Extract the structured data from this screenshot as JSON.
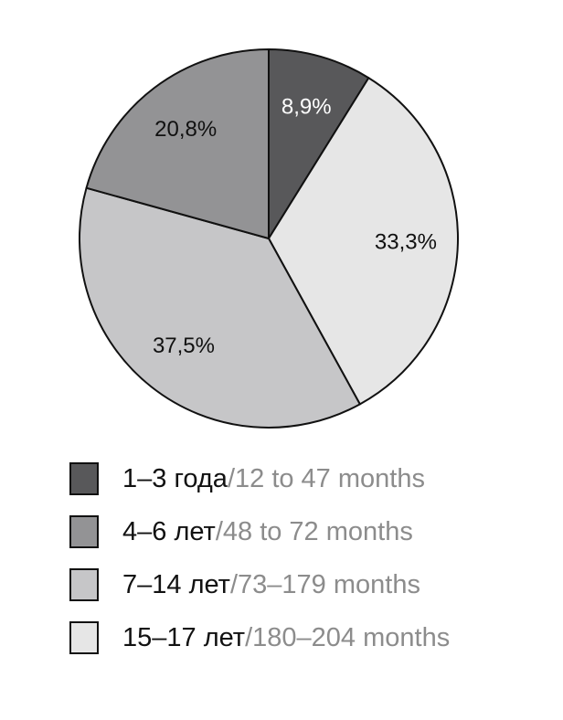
{
  "chart_data": {
    "type": "pie",
    "start": "12 o'clock",
    "direction": "clockwise",
    "slices": [
      {
        "label_ru": "1–3 года",
        "label_en": "12 to 47 months",
        "value": 8.9,
        "value_label": "8,9%",
        "color": "#58585a",
        "label_color": "#ffffff"
      },
      {
        "label_ru": "15–17 лет",
        "label_en": "180–204 months",
        "value": 33.3,
        "value_label": "33,3%",
        "color": "#e6e6e6",
        "label_color": "#111111"
      },
      {
        "label_ru": "7–14 лет",
        "label_en": "73–179 months",
        "value": 37.5,
        "value_label": "37,5%",
        "color": "#c6c6c8",
        "label_color": "#111111"
      },
      {
        "label_ru": "4–6 лет",
        "label_en": "48 to 72 months",
        "value": 20.8,
        "value_label": "20,8%",
        "color": "#939395",
        "label_color": "#111111"
      }
    ],
    "legend": [
      {
        "ru": "1–3 года",
        "sep": "/",
        "en": "12 to 47 months",
        "color": "#58585a"
      },
      {
        "ru": "4–6 лет",
        "sep": "/",
        "en": "48 to 72 months",
        "color": "#939395"
      },
      {
        "ru": "7–14 лет",
        "sep": "/",
        "en": "73–179 months",
        "color": "#c6c6c8"
      },
      {
        "ru": "15–17 лет",
        "sep": "/",
        "en": "180–204 months",
        "color": "#e6e6e6"
      }
    ],
    "legend_placement": "bottom"
  }
}
